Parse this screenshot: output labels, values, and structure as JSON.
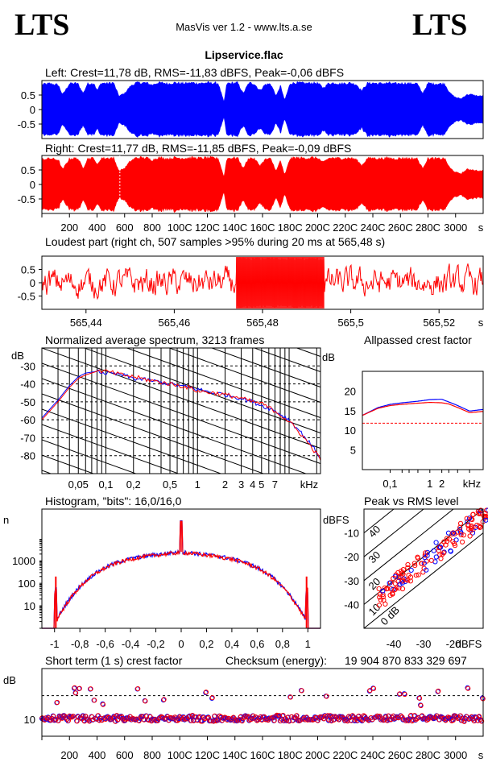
{
  "header": {
    "logo_left": "LTS",
    "logo_right": "LTS",
    "app_title": "MasVis ver 1.2 - www.lts.a.se",
    "file_name": "Lipservice.flac"
  },
  "colors": {
    "left": "#0000ff",
    "right": "#ff0000",
    "grid": "#000000"
  },
  "chart_data": [
    {
      "id": "left",
      "type": "area",
      "title": "Left: Crest=11,78 dB, RMS=-11,83 dBFS, Peak=-0,06 dBFS",
      "ylim": [
        -1,
        1
      ],
      "y_ticks": [
        "0.5",
        "0",
        "-0.5"
      ],
      "xlim": [
        0,
        3200
      ],
      "envelope_x": [
        0,
        60,
        120,
        150,
        200,
        260,
        300,
        330,
        380,
        400,
        430,
        470,
        520,
        560,
        600,
        640,
        680,
        720,
        760,
        800,
        840,
        880,
        920,
        960,
        1000,
        1040,
        1080,
        1120,
        1160,
        1200,
        1240,
        1280,
        1320,
        1340,
        1380,
        1420,
        1460,
        1500,
        1540,
        1580,
        1620,
        1660,
        1700,
        1730,
        1760,
        1800,
        1840,
        1880,
        1920,
        1960,
        2000,
        2040,
        2080,
        2120,
        2160,
        2200,
        2240,
        2280,
        2320,
        2360,
        2400,
        2440,
        2480,
        2520,
        2560,
        2600,
        2640,
        2680,
        2720,
        2760,
        2800,
        2840,
        2880,
        2920,
        2960,
        3000,
        3040,
        3080,
        3120,
        3160,
        3200
      ],
      "envelope_y": [
        0.92,
        0.95,
        0.9,
        0.55,
        0.95,
        0.96,
        0.6,
        0.95,
        0.96,
        0.7,
        0.97,
        0.96,
        0.98,
        0.5,
        0.6,
        0.85,
        0.97,
        0.98,
        0.97,
        0.9,
        0.98,
        0.97,
        0.95,
        0.98,
        0.97,
        0.96,
        0.98,
        0.97,
        0.96,
        0.98,
        0.97,
        0.96,
        0.3,
        0.95,
        0.97,
        0.98,
        0.6,
        0.97,
        0.95,
        0.7,
        0.92,
        0.94,
        0.5,
        0.9,
        0.35,
        0.96,
        0.98,
        0.97,
        0.96,
        0.98,
        0.97,
        0.8,
        0.96,
        0.97,
        0.95,
        0.96,
        0.97,
        0.92,
        0.7,
        0.96,
        0.97,
        0.95,
        0.96,
        0.97,
        0.94,
        0.96,
        0.97,
        0.95,
        0.96,
        0.6,
        0.96,
        0.95,
        0.94,
        0.96,
        0.6,
        0.45,
        0.4,
        0.55,
        0.55,
        0.5,
        0.5
      ]
    },
    {
      "id": "right",
      "type": "area",
      "title": "Right: Crest=11,77 dB, RMS=-11,85 dBFS, Peak=-0,09 dBFS",
      "ylim": [
        -1,
        1
      ],
      "y_ticks": [
        "0.5",
        "0",
        "-0.5"
      ],
      "xlim": [
        0,
        3200
      ],
      "x_ticks": [
        "200",
        "400",
        "600",
        "800",
        "1000",
        "1200",
        "1400",
        "1600",
        "1800",
        "2000",
        "2200",
        "2400",
        "2600",
        "2800",
        "3000"
      ],
      "x_tick_labels": [
        "200",
        "400",
        "600",
        "800",
        "100C",
        "120C",
        "140C",
        "160C",
        "180C",
        "200C",
        "220C",
        "240C",
        "260C",
        "280C",
        "3000"
      ],
      "x_unit": "s",
      "marker_x": 565.48,
      "envelope_x": [
        0,
        60,
        120,
        150,
        200,
        260,
        300,
        330,
        380,
        400,
        430,
        470,
        520,
        560,
        600,
        640,
        680,
        720,
        760,
        800,
        840,
        880,
        920,
        960,
        1000,
        1040,
        1080,
        1120,
        1160,
        1200,
        1240,
        1280,
        1320,
        1340,
        1380,
        1420,
        1460,
        1500,
        1540,
        1580,
        1620,
        1660,
        1700,
        1730,
        1760,
        1800,
        1840,
        1880,
        1920,
        1960,
        2000,
        2040,
        2080,
        2120,
        2160,
        2200,
        2240,
        2280,
        2320,
        2360,
        2400,
        2440,
        2480,
        2520,
        2560,
        2600,
        2640,
        2680,
        2720,
        2760,
        2800,
        2840,
        2880,
        2920,
        2960,
        3000,
        3040,
        3080,
        3120,
        3160,
        3200
      ],
      "envelope_y": [
        0.92,
        0.95,
        0.9,
        0.55,
        0.95,
        0.96,
        0.6,
        0.95,
        0.96,
        0.7,
        0.97,
        0.96,
        0.98,
        0.5,
        0.6,
        0.85,
        0.97,
        0.98,
        0.97,
        0.9,
        0.98,
        0.97,
        0.95,
        0.98,
        0.97,
        0.96,
        0.98,
        0.97,
        0.96,
        0.98,
        0.97,
        0.96,
        0.3,
        0.95,
        0.97,
        0.98,
        0.6,
        0.97,
        0.95,
        0.7,
        0.92,
        0.94,
        0.5,
        0.9,
        0.35,
        0.96,
        0.98,
        0.97,
        0.96,
        0.98,
        0.97,
        0.8,
        0.96,
        0.97,
        0.95,
        0.96,
        0.97,
        0.92,
        0.7,
        0.96,
        0.97,
        0.95,
        0.96,
        0.97,
        0.94,
        0.96,
        0.97,
        0.95,
        0.96,
        0.6,
        0.96,
        0.95,
        0.94,
        0.96,
        0.6,
        0.45,
        0.4,
        0.55,
        0.55,
        0.5,
        0.5
      ]
    },
    {
      "id": "loudest",
      "type": "line",
      "title": "Loudest part (right ch, 507 samples >95% during 20 ms at 565,48 s)",
      "ylim": [
        -1,
        1
      ],
      "y_ticks": [
        "0.5",
        "0",
        "-0.5"
      ],
      "xlim": [
        565.43,
        565.53
      ],
      "x_ticks": [
        565.44,
        565.46,
        565.48,
        565.5,
        565.52
      ],
      "x_tick_labels": [
        "565,44",
        "565,46",
        "565,48",
        "565,5",
        "565,52"
      ],
      "x_unit": "s",
      "loud_range": [
        565.474,
        565.494
      ]
    },
    {
      "id": "spectrum",
      "type": "line",
      "title": "Normalized average spectrum, 3213 frames",
      "ylabel": "dB",
      "ylim": [
        -90,
        -20
      ],
      "y_ticks": [
        -30,
        -40,
        -50,
        -60,
        -70,
        -80
      ],
      "xlim": [
        0.02,
        22
      ],
      "x_ticks": [
        0.05,
        0.1,
        0.2,
        0.5,
        1,
        2,
        3,
        4,
        5,
        7
      ],
      "x_tick_labels": [
        "0,05",
        "0,1",
        "0,2",
        "0,5",
        "1",
        "2",
        "3",
        "4",
        "5",
        "7"
      ],
      "x_unit": "kHz",
      "freq_khz": [
        0.02,
        0.03,
        0.04,
        0.05,
        0.06,
        0.08,
        0.1,
        0.15,
        0.2,
        0.3,
        0.5,
        0.8,
        1,
        1.5,
        2,
        3,
        4,
        5,
        7,
        10,
        14,
        18,
        22
      ],
      "left_db": [
        -59,
        -49,
        -41,
        -36,
        -34,
        -33,
        -34,
        -35,
        -37,
        -38,
        -40,
        -42,
        -43,
        -45,
        -46,
        -48,
        -50,
        -52,
        -55,
        -60,
        -68,
        -75,
        -81
      ],
      "right_db": [
        -60,
        -50,
        -42,
        -37,
        -35,
        -33,
        -33,
        -35,
        -36,
        -38,
        -40,
        -42,
        -44,
        -45,
        -46,
        -48,
        -50,
        -51,
        -55,
        -61,
        -69,
        -76,
        -82
      ]
    },
    {
      "id": "allpass",
      "type": "line",
      "title": "Allpassed crest factor",
      "ylabel": "dB",
      "ylim": [
        0,
        25
      ],
      "y_ticks": [
        5,
        10,
        15,
        20
      ],
      "xlim": [
        0.02,
        22
      ],
      "x_ticks": [
        0.1,
        1,
        2
      ],
      "x_tick_labels": [
        "0,1",
        "1",
        "2"
      ],
      "x_unit": "kHz",
      "reference_db": 11.8,
      "freq_khz": [
        0.02,
        0.05,
        0.1,
        0.2,
        0.5,
        1,
        2,
        3,
        5,
        10,
        22
      ],
      "left_db": [
        13.8,
        15.8,
        16.6,
        17.0,
        17.4,
        17.8,
        17.9,
        17.2,
        16.3,
        14.9,
        15.3
      ],
      "right_db": [
        13.8,
        15.6,
        16.3,
        16.6,
        16.9,
        17.1,
        17.0,
        16.7,
        15.8,
        14.5,
        14.8
      ]
    },
    {
      "id": "histogram",
      "type": "line",
      "title": "Histogram, \"bits\": 16,0/16,0",
      "ylabel": "n",
      "y_scale": "log",
      "ylim": [
        1,
        200000
      ],
      "y_ticks": [
        10,
        100,
        1000
      ],
      "y_tick_labels": [
        "10",
        "100",
        "1000"
      ],
      "xlim": [
        -1.1,
        1.1
      ],
      "x_ticks": [
        -1,
        -0.8,
        -0.6,
        -0.4,
        -0.2,
        0,
        0.2,
        0.4,
        0.6,
        0.8,
        1
      ],
      "x_tick_labels": [
        "-1",
        "-0,8",
        "-0,6",
        "-0,4",
        "-0,2",
        "0",
        "0,2",
        "0,4",
        "0,6",
        "0,8",
        "1"
      ]
    },
    {
      "id": "peak_rms",
      "type": "scatter",
      "title": "Peak vs RMS level",
      "ylabel": "dBFS",
      "xlabel": "dBFS",
      "xlim": [
        -50,
        -10
      ],
      "ylim": [
        -50,
        0
      ],
      "x_ticks": [
        -40,
        -30,
        -20
      ],
      "y_ticks": [
        -10,
        -20,
        -30,
        -40
      ],
      "diagonal_labels": [
        "40",
        "30",
        "20",
        "10",
        "0 dB"
      ]
    },
    {
      "id": "crest",
      "type": "scatter",
      "title": "Short term (1 s) crest factor",
      "ylabel": "dB",
      "ylim": [
        5,
        25
      ],
      "y_ticks": [
        10
      ],
      "xlim": [
        0,
        3200
      ],
      "x_ticks": [
        200,
        400,
        600,
        800,
        1000,
        1200,
        1400,
        1600,
        1800,
        2000,
        2200,
        2400,
        2600,
        2800,
        3000
      ],
      "x_tick_labels": [
        "200",
        "400",
        "600",
        "800",
        "100C",
        "120C",
        "140C",
        "160C",
        "180C",
        "200C",
        "220C",
        "240C",
        "260C",
        "280C",
        "3000"
      ],
      "x_unit": "s",
      "reference_db": 17
    }
  ],
  "checksum": {
    "label": "Checksum (energy):",
    "value": "19 904 870 833 329 697"
  }
}
